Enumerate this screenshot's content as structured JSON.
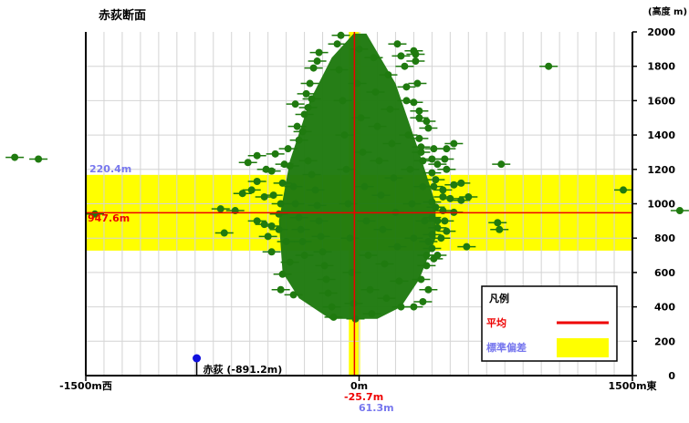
{
  "chart_data": {
    "type": "scatter",
    "title": "赤荻断面",
    "y_unit": "(高度 m)",
    "x_range": [
      -1500,
      1500
    ],
    "y_range": [
      0,
      2000
    ],
    "y_ticks": [
      0,
      200,
      400,
      600,
      800,
      1000,
      1200,
      1400,
      1600,
      1800,
      2000
    ],
    "x_tick_labels": [
      {
        "x": -1500,
        "label": "-1500m西"
      },
      {
        "x": 0,
        "label": "0m"
      },
      {
        "x": 1500,
        "label": "1500m東"
      }
    ],
    "mean_height": 947.6,
    "mean_height_label": "947.6m",
    "height_std": 220.4,
    "height_std_label": "220.4m",
    "mean_x": -25.7,
    "mean_x_label": "-25.7m",
    "x_std": 61.3,
    "x_std_label": "61.3m",
    "station": {
      "name": "赤荻",
      "x": -891.2,
      "label": "赤荻 (-891.2m)"
    },
    "legend": {
      "title": "凡例",
      "placement": "bottom-right",
      "items": [
        {
          "label": "平均",
          "kind": "line",
          "color": "#ee0000"
        },
        {
          "label": "標準偏差",
          "kind": "band",
          "color": "#ffff00"
        }
      ]
    },
    "grid": true,
    "colors": {
      "points": "#1f7a0f",
      "mean": "#ee0000",
      "band": "#ffff00",
      "std_text": "#7777ee",
      "station": "#1010dd"
    },
    "series": [
      {
        "values": [
          [
            -1890,
            1270
          ],
          [
            -1760,
            1260
          ],
          [
            -1450,
            940
          ],
          [
            -740,
            830
          ],
          [
            -760,
            970
          ],
          [
            -680,
            960
          ],
          [
            -640,
            1060
          ],
          [
            -590,
            1080
          ],
          [
            -560,
            1130
          ],
          [
            -610,
            1240
          ],
          [
            -560,
            1280
          ],
          [
            -520,
            1040
          ],
          [
            -510,
            1200
          ],
          [
            -480,
            1190
          ],
          [
            -460,
            1290
          ],
          [
            -470,
            1050
          ],
          [
            -440,
            940
          ],
          [
            -430,
            1000
          ],
          [
            -560,
            900
          ],
          [
            -520,
            880
          ],
          [
            -480,
            870
          ],
          [
            -440,
            850
          ],
          [
            -500,
            810
          ],
          [
            -480,
            720
          ],
          [
            -420,
            1120
          ],
          [
            -410,
            1230
          ],
          [
            -390,
            1320
          ],
          [
            -380,
            1220
          ],
          [
            -360,
            1100
          ],
          [
            -350,
            1000
          ],
          [
            -330,
            920
          ],
          [
            -320,
            850
          ],
          [
            -310,
            780
          ],
          [
            -300,
            700
          ],
          [
            -400,
            780
          ],
          [
            -380,
            660
          ],
          [
            -420,
            590
          ],
          [
            -430,
            500
          ],
          [
            -360,
            470
          ],
          [
            -340,
            1450
          ],
          [
            -330,
            1370
          ],
          [
            -310,
            1420
          ],
          [
            -300,
            1520
          ],
          [
            -280,
            1560
          ],
          [
            -290,
            1640
          ],
          [
            -270,
            1700
          ],
          [
            -260,
            1610
          ],
          [
            -250,
            1790
          ],
          [
            -230,
            1830
          ],
          [
            -220,
            1880
          ],
          [
            -350,
            1580
          ],
          [
            -280,
            1250
          ],
          [
            -260,
            1170
          ],
          [
            -240,
            1080
          ],
          [
            -230,
            990
          ],
          [
            -220,
            900
          ],
          [
            -210,
            810
          ],
          [
            -200,
            720
          ],
          [
            -190,
            640
          ],
          [
            -180,
            560
          ],
          [
            -170,
            480
          ],
          [
            -150,
            400
          ],
          [
            -140,
            340
          ],
          [
            -120,
            1930
          ],
          [
            -100,
            1980
          ],
          [
            -110,
            1780
          ],
          [
            -90,
            1600
          ],
          [
            -80,
            1400
          ],
          [
            -70,
            1200
          ],
          [
            -60,
            1000
          ],
          [
            -50,
            800
          ],
          [
            -40,
            600
          ],
          [
            -30,
            420
          ],
          [
            -20,
            330
          ],
          [
            -10,
            1700
          ],
          [
            0,
            1900
          ],
          [
            10,
            1500
          ],
          [
            20,
            1300
          ],
          [
            30,
            1100
          ],
          [
            40,
            900
          ],
          [
            50,
            700
          ],
          [
            60,
            500
          ],
          [
            70,
            360
          ],
          [
            80,
            1850
          ],
          [
            90,
            1650
          ],
          [
            100,
            1450
          ],
          [
            110,
            1250
          ],
          [
            120,
            1050
          ],
          [
            130,
            850
          ],
          [
            140,
            650
          ],
          [
            150,
            450
          ],
          [
            160,
            1750
          ],
          [
            170,
            1550
          ],
          [
            180,
            1350
          ],
          [
            190,
            1150
          ],
          [
            200,
            950
          ],
          [
            210,
            750
          ],
          [
            220,
            550
          ],
          [
            230,
            400
          ],
          [
            250,
            1800
          ],
          [
            260,
            1600
          ],
          [
            270,
            1400
          ],
          [
            280,
            1200
          ],
          [
            290,
            1000
          ],
          [
            300,
            800
          ],
          [
            310,
            1870
          ],
          [
            320,
            1700
          ],
          [
            330,
            1500
          ],
          [
            340,
            1300
          ],
          [
            350,
            1100
          ],
          [
            360,
            900
          ],
          [
            370,
            700
          ],
          [
            380,
            500
          ],
          [
            300,
            1890
          ],
          [
            210,
            1930
          ],
          [
            230,
            1860
          ],
          [
            310,
            1830
          ],
          [
            260,
            1680
          ],
          [
            300,
            1590
          ],
          [
            330,
            1540
          ],
          [
            370,
            1480
          ],
          [
            380,
            1440
          ],
          [
            410,
            1320
          ],
          [
            330,
            1380
          ],
          [
            340,
            1330
          ],
          [
            350,
            1250
          ],
          [
            400,
            1260
          ],
          [
            430,
            1230
          ],
          [
            470,
            1260
          ],
          [
            400,
            1180
          ],
          [
            420,
            1140
          ],
          [
            410,
            1100
          ],
          [
            460,
            1080
          ],
          [
            520,
            1110
          ],
          [
            560,
            1120
          ],
          [
            460,
            1040
          ],
          [
            500,
            1030
          ],
          [
            560,
            1020
          ],
          [
            600,
            1040
          ],
          [
            400,
            1010
          ],
          [
            420,
            980
          ],
          [
            460,
            960
          ],
          [
            520,
            950
          ],
          [
            400,
            920
          ],
          [
            430,
            900
          ],
          [
            470,
            900
          ],
          [
            430,
            860
          ],
          [
            480,
            840
          ],
          [
            400,
            820
          ],
          [
            450,
            800
          ],
          [
            380,
            780
          ],
          [
            400,
            740
          ],
          [
            410,
            680
          ],
          [
            430,
            700
          ],
          [
            370,
            640
          ],
          [
            340,
            560
          ],
          [
            350,
            430
          ],
          [
            300,
            400
          ],
          [
            480,
            1200
          ],
          [
            480,
            1320
          ],
          [
            520,
            1350
          ],
          [
            590,
            750
          ],
          [
            760,
            890
          ],
          [
            770,
            850
          ],
          [
            780,
            1230
          ],
          [
            1040,
            1800
          ],
          [
            1450,
            1080
          ],
          [
            1760,
            960
          ]
        ]
      }
    ]
  }
}
